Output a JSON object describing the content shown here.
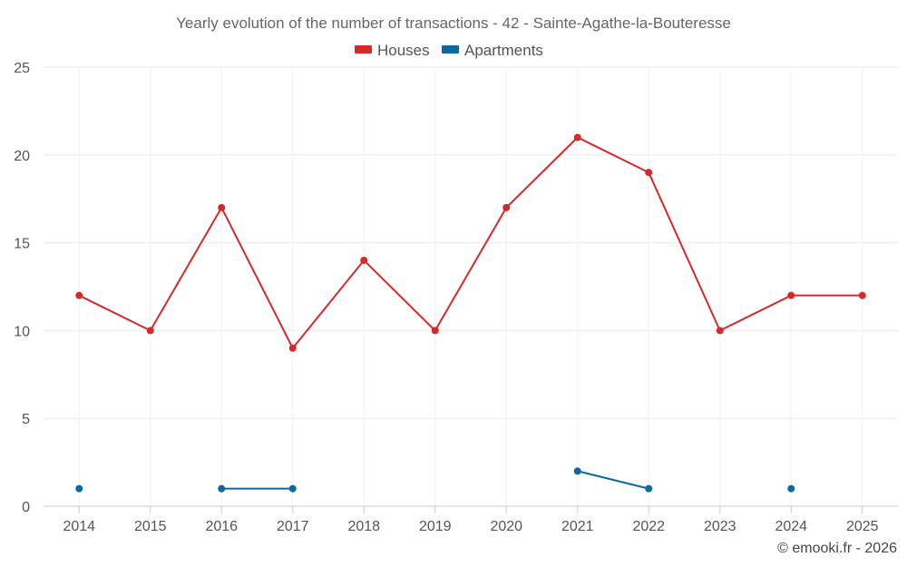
{
  "chart_data": {
    "type": "line",
    "title": "Yearly evolution of the number of transactions - 42 - Sainte-Agathe-la-Bouteresse",
    "categories": [
      "2014",
      "2015",
      "2016",
      "2017",
      "2018",
      "2019",
      "2020",
      "2021",
      "2022",
      "2023",
      "2024",
      "2025"
    ],
    "series": [
      {
        "name": "Houses",
        "color": "#d42a2a",
        "values": [
          12,
          10,
          17,
          9,
          14,
          10,
          17,
          21,
          19,
          10,
          12,
          12
        ]
      },
      {
        "name": "Apartments",
        "color": "#0a6aa0",
        "values": [
          1,
          null,
          1,
          1,
          null,
          null,
          null,
          2,
          1,
          null,
          1,
          null
        ]
      }
    ],
    "ylim": [
      0,
      25
    ],
    "yticks": [
      0,
      5,
      10,
      15,
      20,
      25
    ],
    "xlabel": "",
    "ylabel": "",
    "grid": true,
    "legend_position": "top-center",
    "credit": "© emooki.fr - 2026"
  }
}
